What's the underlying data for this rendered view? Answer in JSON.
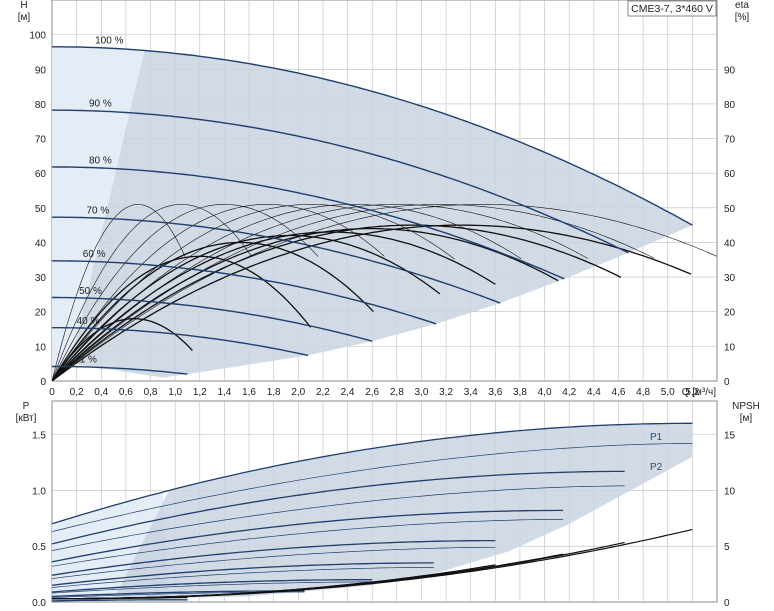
{
  "chart_data": [
    {
      "type": "line",
      "panel": "top",
      "title": "CME3-7, 3*460 V",
      "ylabel_left": [
        "H",
        "[м]"
      ],
      "ylabel_right": [
        "eta",
        "[%]"
      ],
      "xlabel": "Q [м³/ч]",
      "x_ticks": [
        "0",
        "0,2",
        "0,4",
        "0,6",
        "0,8",
        "1,0",
        "1,2",
        "1,4",
        "1,6",
        "1,8",
        "2,0",
        "2,2",
        "2,4",
        "2,6",
        "2,8",
        "3,0",
        "3,2",
        "3,4",
        "3,6",
        "3,8",
        "4,0",
        "4,2",
        "4,4",
        "4,6",
        "4,8",
        "5,0",
        "5,2"
      ],
      "y_ticks_left": [
        "0",
        "10",
        "20",
        "30",
        "40",
        "50",
        "60",
        "70",
        "80",
        "90",
        "100"
      ],
      "y_ticks_right": [
        "0",
        "10",
        "20",
        "30",
        "40",
        "50",
        "60",
        "70",
        "80",
        "90"
      ],
      "xlim": [
        0,
        5.4
      ],
      "ylim": [
        0,
        110
      ],
      "grid": true,
      "speeds": [
        {
          "label": "100 %",
          "h0": 96.5,
          "qmax": 5.2,
          "hend": 45
        },
        {
          "label": "90 %",
          "h0": 78.2,
          "qmax": 4.68,
          "hend": 37
        },
        {
          "label": "80 %",
          "h0": 61.8,
          "qmax": 4.16,
          "hend": 29.5
        },
        {
          "label": "70 %",
          "h0": 47.3,
          "qmax": 3.64,
          "hend": 22.5
        },
        {
          "label": "60 %",
          "h0": 34.7,
          "qmax": 3.12,
          "hend": 16.5
        },
        {
          "label": "50 %",
          "h0": 24.1,
          "qmax": 2.6,
          "hend": 11.5
        },
        {
          "label": "40 %",
          "h0": 15.4,
          "qmax": 2.08,
          "hend": 7.4
        },
        {
          "label": "21 %",
          "h0": 4.2,
          "qmax": 1.1,
          "hend": 2.0
        }
      ],
      "efficiency_peak_percent": 51,
      "efficiency_peak_q_at_100": 3.5
    },
    {
      "type": "line",
      "panel": "bottom",
      "ylabel_left": [
        "P",
        "[кВт]"
      ],
      "ylabel_right": [
        "NPSH",
        "[м]"
      ],
      "y_ticks_left": [
        "0.0",
        "0.5",
        "1.0",
        "1.5"
      ],
      "y_ticks_right": [
        "0",
        "5",
        "10",
        "15"
      ],
      "ylim_left": [
        0,
        1.8
      ],
      "ylim_right": [
        0,
        18
      ],
      "grid": true,
      "series_labels": [
        "P1",
        "P2"
      ],
      "power_curves": [
        {
          "p1_start": 0.7,
          "p1_peak": 1.6,
          "p2_start": 0.63,
          "p2_end": 1.42,
          "qmax": 5.2
        },
        {
          "p1_start": 0.52,
          "p1_peak": 1.17,
          "p2_start": 0.46,
          "p2_end": 1.04,
          "qmax": 4.68
        },
        {
          "p1_start": 0.36,
          "p1_peak": 0.82,
          "p2_start": 0.32,
          "p2_end": 0.74,
          "qmax": 4.16
        },
        {
          "p1_start": 0.24,
          "p1_peak": 0.55,
          "p2_start": 0.21,
          "p2_end": 0.49,
          "qmax": 3.64
        },
        {
          "p1_start": 0.15,
          "p1_peak": 0.35,
          "p2_start": 0.13,
          "p2_end": 0.31,
          "qmax": 3.12
        },
        {
          "p1_start": 0.09,
          "p1_peak": 0.2,
          "p2_start": 0.08,
          "p2_end": 0.18,
          "qmax": 2.6
        },
        {
          "p1_start": 0.05,
          "p1_peak": 0.1,
          "p2_start": 0.04,
          "p2_end": 0.09,
          "qmax": 2.08
        },
        {
          "p1_start": 0.01,
          "p1_peak": 0.02,
          "p2_start": 0.01,
          "p2_end": 0.02,
          "qmax": 1.1
        }
      ],
      "npsh_end_values": [
        6.5,
        5.4,
        4.3,
        3.4,
        2.5,
        1.8,
        1.1,
        0.4
      ]
    }
  ],
  "colors": {
    "curve": "#1f3f6e",
    "band": "#c9d3e0",
    "band_light": "#e4ecf6",
    "grid": "#bdbdbd",
    "eff": "#111111"
  }
}
